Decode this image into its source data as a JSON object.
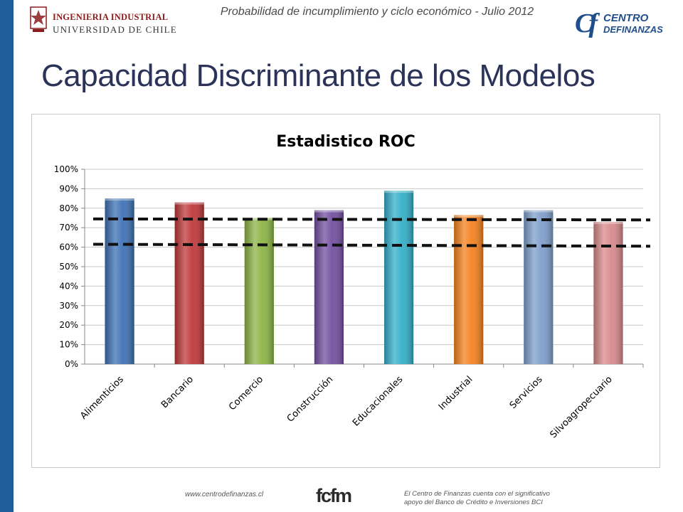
{
  "header": {
    "university_line1": "INGENIERIA INDUSTRIAL",
    "university_line2": "UNIVERSIDAD DE CHILE",
    "subtitle": "Probabilidad de incumplimiento y ciclo económico - Julio 2012",
    "cf_mark": "Cf",
    "cf_line1": "CENTRO",
    "cf_line2": "DEFINANZAS"
  },
  "slide": {
    "title": "Capacidad Discriminante de los Modelos"
  },
  "footer": {
    "url": "www.centrodefinanzas.cl",
    "logo_text": "fcfm",
    "support_line1": "El Centro de Finanzas cuenta con el significativo",
    "support_line2": "apoyo del Banco de Crédito e Inversiones BCI"
  },
  "colors": {
    "accent_bar": "#1f5c99",
    "title": "#2b3359"
  },
  "chart_data": {
    "type": "bar",
    "title": "Estadistico ROC",
    "xlabel": "",
    "ylabel": "",
    "ylim": [
      0,
      100
    ],
    "y_ticks": [
      "0%",
      "10%",
      "20%",
      "30%",
      "40%",
      "50%",
      "60%",
      "70%",
      "80%",
      "90%",
      "100%"
    ],
    "grid": true,
    "legend": "none",
    "categories": [
      "Alimenticios",
      "Bancario",
      "Comercio",
      "Construcción",
      "Educacionales",
      "Industrial",
      "Servicios",
      "Silvoagropecuario"
    ],
    "values": [
      85,
      83,
      75,
      79,
      89,
      76.5,
      79,
      73
    ],
    "bar_colors": [
      "#3f72b5",
      "#c0393a",
      "#8db545",
      "#7350a0",
      "#33b0c8",
      "#f58220",
      "#7f9fcc",
      "#d98a8c"
    ],
    "reference_lines": [
      {
        "y_start": 74.5,
        "y_end": 74,
        "style": "dashed"
      },
      {
        "y_start": 61.5,
        "y_end": 60.5,
        "style": "dashed"
      }
    ]
  }
}
